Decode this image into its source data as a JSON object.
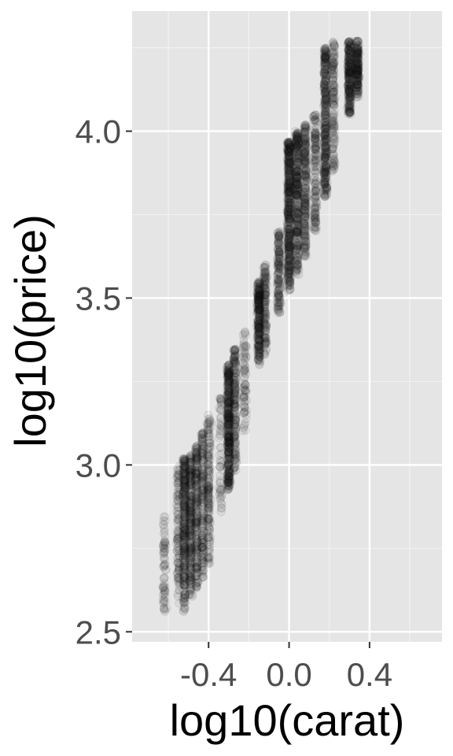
{
  "chart_data": {
    "type": "scatter",
    "title": "",
    "xlabel": "log10(carat)",
    "ylabel": "log10(price)",
    "xlim": [
      -0.78,
      0.76
    ],
    "ylim": [
      2.47,
      4.36
    ],
    "x_ticks": [
      -0.4,
      0.0,
      0.4
    ],
    "x_tick_labels": [
      "-0.4",
      "0.0",
      "0.4"
    ],
    "y_ticks": [
      2.5,
      3.0,
      3.5,
      4.0
    ],
    "y_tick_labels": [
      "2.5",
      "3.0",
      "3.5",
      "4.0"
    ],
    "grid": true,
    "panel_background": "#e5e5e5",
    "point_color": "#1a1a1a",
    "point_alpha": 0.03,
    "note_points": "Dense vertical bands at common carat sizes; representative sample of points",
    "series": [
      {
        "clusters": [
          {
            "x": -0.62,
            "y_range": [
              2.55,
              2.85
            ],
            "n": 70
          },
          {
            "x": -0.55,
            "y_range": [
              2.58,
              3.0
            ],
            "n": 120
          },
          {
            "x": -0.52,
            "y_range": [
              2.56,
              3.02
            ],
            "n": 320
          },
          {
            "x": -0.49,
            "y_range": [
              2.6,
              3.03
            ],
            "n": 260
          },
          {
            "x": -0.46,
            "y_range": [
              2.63,
              3.06
            ],
            "n": 220
          },
          {
            "x": -0.43,
            "y_range": [
              2.66,
              3.1
            ],
            "n": 180
          },
          {
            "x": -0.4,
            "y_range": [
              2.7,
              3.15
            ],
            "n": 180
          },
          {
            "x": -0.34,
            "y_range": [
              2.85,
              3.2
            ],
            "n": 60
          },
          {
            "x": -0.3,
            "y_range": [
              2.92,
              3.3
            ],
            "n": 420
          },
          {
            "x": -0.27,
            "y_range": [
              2.98,
              3.35
            ],
            "n": 200
          },
          {
            "x": -0.22,
            "y_range": [
              3.1,
              3.4
            ],
            "n": 80
          },
          {
            "x": -0.15,
            "y_range": [
              3.3,
              3.55
            ],
            "n": 280
          },
          {
            "x": -0.12,
            "y_range": [
              3.33,
              3.6
            ],
            "n": 150
          },
          {
            "x": -0.05,
            "y_range": [
              3.45,
              3.7
            ],
            "n": 160
          },
          {
            "x": 0.0,
            "y_range": [
              3.52,
              3.97
            ],
            "n": 500
          },
          {
            "x": 0.04,
            "y_range": [
              3.57,
              4.0
            ],
            "n": 360
          },
          {
            "x": 0.08,
            "y_range": [
              3.62,
              4.02
            ],
            "n": 260
          },
          {
            "x": 0.13,
            "y_range": [
              3.7,
              4.05
            ],
            "n": 160
          },
          {
            "x": 0.18,
            "y_range": [
              3.8,
              4.25
            ],
            "n": 380
          },
          {
            "x": 0.22,
            "y_range": [
              3.88,
              4.27
            ],
            "n": 160
          },
          {
            "x": 0.3,
            "y_range": [
              4.05,
              4.27
            ],
            "n": 260
          },
          {
            "x": 0.34,
            "y_range": [
              4.1,
              4.27
            ],
            "n": 200
          }
        ]
      }
    ]
  }
}
